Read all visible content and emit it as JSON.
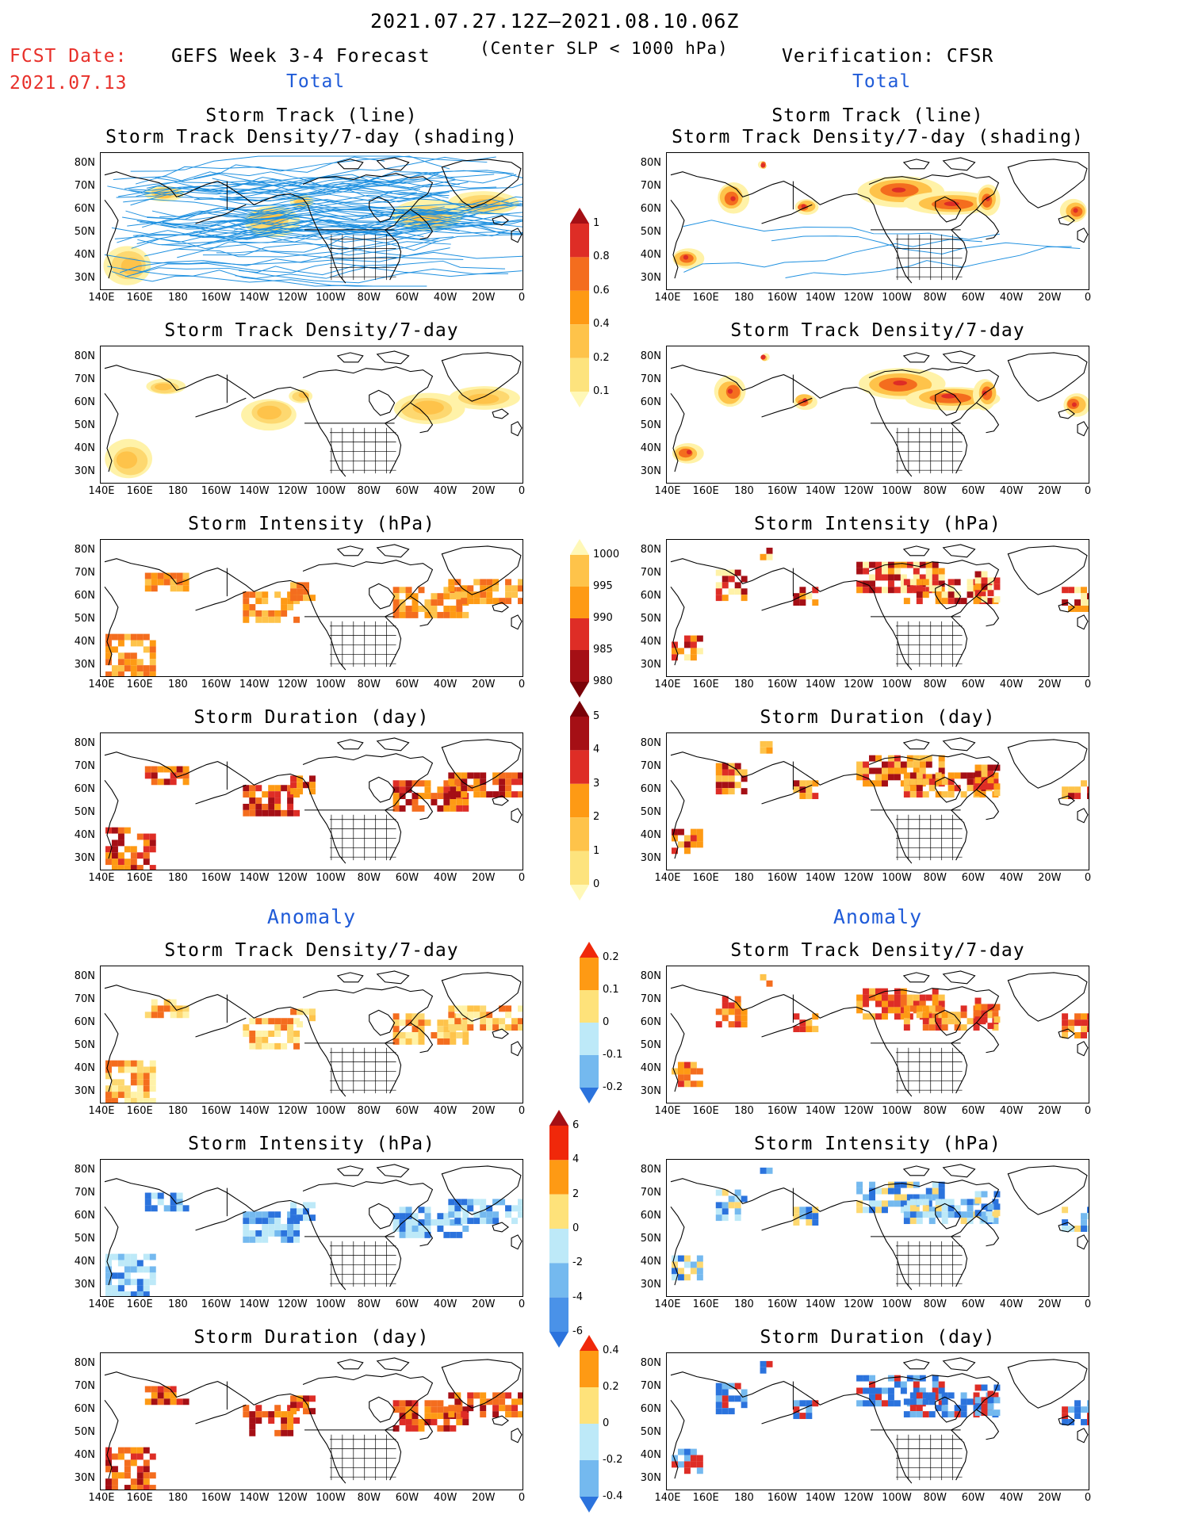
{
  "header": {
    "date_range": "2021.07.27.12Z–2021.08.10.06Z",
    "fcst_label": "FCST Date:",
    "fcst_date": "2021.07.13",
    "left_title": "GEFS Week 3-4 Forecast",
    "center_note": "(Center SLP < 1000 hPa)",
    "right_title": "Verification: CFSR",
    "left_total": "Total",
    "right_total": "Total"
  },
  "sections": {
    "anomaly_left": "Anomaly",
    "anomaly_right": "Anomaly"
  },
  "axes": {
    "y_ticks": [
      "80N",
      "70N",
      "60N",
      "50N",
      "40N",
      "30N"
    ],
    "x_ticks": [
      "140E",
      "160E",
      "180",
      "160W",
      "140W",
      "120W",
      "100W",
      "80W",
      "60W",
      "40W",
      "20W",
      "0"
    ]
  },
  "panels": {
    "left": [
      {
        "title": "Storm Track (line)",
        "subtitle": "Storm Track Density/7-day (shading)",
        "kind": "track"
      },
      {
        "title": "Storm Track Density/7-day",
        "kind": "density"
      },
      {
        "title": "Storm Intensity (hPa)",
        "kind": "intensity"
      },
      {
        "title": "Storm Duration (day)",
        "kind": "duration"
      },
      {
        "title": "Storm Track Density/7-day",
        "kind": "anom_density"
      },
      {
        "title": "Storm Intensity (hPa)",
        "kind": "anom_intensity"
      },
      {
        "title": "Storm Duration (day)",
        "kind": "anom_duration"
      }
    ],
    "right": [
      {
        "title": "Storm Track (line)",
        "subtitle": "Storm Track Density/7-day (shading)",
        "kind": "track"
      },
      {
        "title": "Storm Track Density/7-day",
        "kind": "density"
      },
      {
        "title": "Storm Intensity (hPa)",
        "kind": "intensity"
      },
      {
        "title": "Storm Duration (day)",
        "kind": "duration"
      },
      {
        "title": "Storm Track Density/7-day",
        "kind": "anom_density"
      },
      {
        "title": "Storm Intensity (hPa)",
        "kind": "anom_intensity"
      },
      {
        "title": "Storm Duration (day)",
        "kind": "anom_duration"
      }
    ]
  },
  "colorbars": {
    "density": {
      "labels": [
        "1",
        "0.8",
        "0.6",
        "0.4",
        "0.2",
        "0.1"
      ],
      "colors": [
        "#a50f15",
        "#de2d26",
        "#f46d1e",
        "#fe9a14",
        "#fec34a",
        "#fde37d",
        "#fff8b8"
      ]
    },
    "intensity": {
      "labels": [
        "1000",
        "995",
        "990",
        "985",
        "980"
      ],
      "colors": [
        "#fff8b8",
        "#fec34a",
        "#fe9a14",
        "#de2d26",
        "#a50f15",
        "#7a0208"
      ]
    },
    "duration": {
      "labels": [
        "5",
        "4",
        "3",
        "2",
        "1",
        "0"
      ],
      "colors": [
        "#7a0208",
        "#a50f15",
        "#de2d26",
        "#fe9a14",
        "#fec34a",
        "#fde37d",
        "#fff8b8"
      ]
    },
    "anom_density": {
      "labels": [
        "0.2",
        "0.1",
        "0",
        "-0.1",
        "-0.2"
      ],
      "colors": [
        "#f0280a",
        "#fe9a14",
        "#fee27a",
        "#bde9f8",
        "#74b9ef",
        "#2b73dd"
      ]
    },
    "anom_intensity": {
      "labels": [
        "6",
        "4",
        "2",
        "0",
        "-2",
        "-4",
        "-6"
      ],
      "colors": [
        "#a50f15",
        "#f0280a",
        "#fe9a14",
        "#fee27a",
        "#bde9f8",
        "#74b9ef",
        "#4a92e8",
        "#2b73dd"
      ]
    },
    "anom_duration": {
      "labels": [
        "0.4",
        "0.2",
        "0",
        "-0.2",
        "-0.4"
      ],
      "colors": [
        "#f0280a",
        "#fe9a14",
        "#fee27a",
        "#bde9f8",
        "#74b9ef",
        "#2b73dd"
      ]
    }
  },
  "map_data": {
    "region": "North Pacific / North America / North Atlantic",
    "lon_range": [
      "140E",
      "0"
    ],
    "lat_range": [
      "25N",
      "85N"
    ],
    "palette": {
      "light_yellow": "#fff2a8",
      "yellow": "#fdd870",
      "light_orange": "#fec34a",
      "orange": "#fe9a14",
      "red_orange": "#f46d1e",
      "red": "#de2d26",
      "dark_red": "#a50f15",
      "light_blue": "#bde9f8",
      "mid_blue": "#74b9ef",
      "blue": "#2b73dd",
      "track_line": "#1e90e0"
    }
  }
}
